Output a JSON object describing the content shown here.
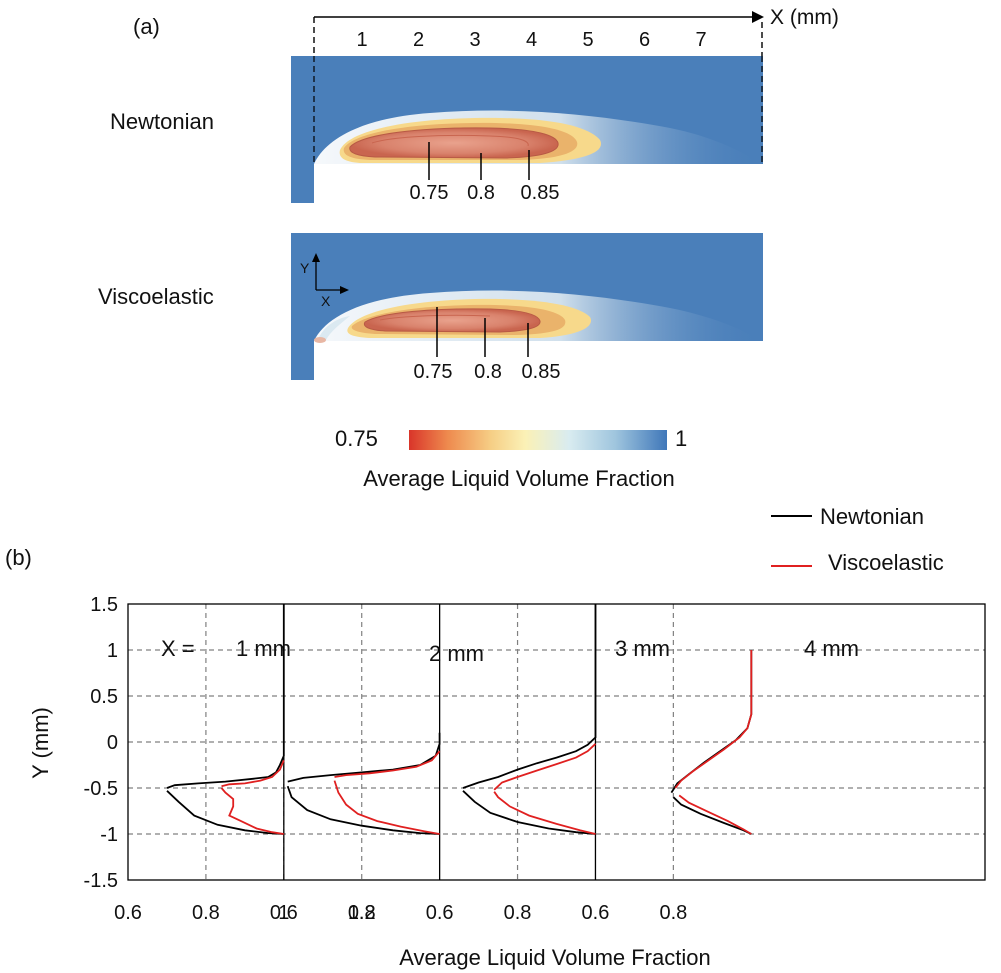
{
  "panel_a": {
    "label": "(a)",
    "x_axis_label": "X (mm)",
    "x_ticks": [
      "1",
      "2",
      "3",
      "4",
      "5",
      "6",
      "7"
    ],
    "rows": [
      {
        "name": "Newtonian",
        "contour_labels": [
          "0.75",
          "0.8",
          "0.85"
        ]
      },
      {
        "name": "Viscoelastic",
        "contour_labels": [
          "0.75",
          "0.8",
          "0.85"
        ]
      }
    ],
    "axes_indicator": {
      "y": "Y",
      "x": "X"
    },
    "colorbar": {
      "min_label": "0.75",
      "max_label": "1",
      "title": "Average Liquid Volume Fraction",
      "colors": [
        "#d9352a",
        "#ee8a4e",
        "#f6cf86",
        "#fbf1b6",
        "#d9ecf0",
        "#9fc5de",
        "#3f77b9"
      ]
    }
  },
  "chart_data": {
    "type": "line",
    "label": "(b)",
    "xlabel": "Average Liquid Volume Fraction",
    "ylabel": "Y (mm)",
    "x_tick_labels": [
      "0.6",
      "0.8",
      "0.6",
      "0.8",
      "0.6",
      "0.8",
      "0.6",
      "0.8",
      "1",
      "1.2"
    ],
    "y_tick_labels": [
      "1.5",
      "1",
      "0.5",
      "0",
      "-0.5",
      "-1",
      "-1.5"
    ],
    "y_ticks": [
      1.5,
      1,
      0.5,
      0,
      -0.5,
      -1,
      -1.5
    ],
    "ylim": [
      -1.5,
      1.5
    ],
    "grid": true,
    "legend": {
      "placement": "top-right",
      "entries": [
        {
          "name": "Newtonian",
          "color": "#000000"
        },
        {
          "name": "Viscoelastic",
          "color": "#e02020"
        }
      ]
    },
    "x_prefix": "X =",
    "subplots": [
      {
        "label": "1 mm",
        "x_range": [
          0.6,
          1.0
        ],
        "series": [
          {
            "name": "Newtonian",
            "color": "#000000",
            "points": [
              [
                0.7,
                -0.5
              ],
              [
                0.72,
                -0.47
              ],
              [
                0.78,
                -0.45
              ],
              [
                0.85,
                -0.43
              ],
              [
                0.92,
                -0.4
              ],
              [
                0.96,
                -0.38
              ],
              [
                0.98,
                -0.33
              ],
              [
                0.99,
                -0.25
              ],
              [
                1.0,
                -0.15
              ],
              [
                1.0,
                0.4
              ],
              [
                1.0,
                1.5
              ],
              [
                1.0,
                -1.0
              ],
              [
                0.96,
                -0.99
              ],
              [
                0.9,
                -0.96
              ],
              [
                0.83,
                -0.9
              ],
              [
                0.77,
                -0.8
              ],
              [
                0.73,
                -0.65
              ],
              [
                0.7,
                -0.53
              ]
            ]
          },
          {
            "name": "Viscoelastic",
            "color": "#e02020",
            "points": [
              [
                0.84,
                -0.48
              ],
              [
                0.86,
                -0.46
              ],
              [
                0.9,
                -0.45
              ],
              [
                0.94,
                -0.42
              ],
              [
                0.97,
                -0.38
              ],
              [
                0.99,
                -0.3
              ],
              [
                1.0,
                -0.2
              ],
              [
                1.0,
                -1.0
              ],
              [
                0.97,
                -0.98
              ],
              [
                0.93,
                -0.94
              ],
              [
                0.89,
                -0.86
              ],
              [
                0.86,
                -0.8
              ],
              [
                0.87,
                -0.7
              ],
              [
                0.87,
                -0.62
              ],
              [
                0.85,
                -0.55
              ],
              [
                0.84,
                -0.5
              ]
            ]
          }
        ]
      },
      {
        "label": "2 mm",
        "x_range": [
          0.6,
          1.0
        ],
        "series": [
          {
            "name": "Newtonian",
            "color": "#000000",
            "points": [
              [
                0.61,
                -0.43
              ],
              [
                0.65,
                -0.39
              ],
              [
                0.72,
                -0.36
              ],
              [
                0.8,
                -0.33
              ],
              [
                0.88,
                -0.3
              ],
              [
                0.95,
                -0.25
              ],
              [
                0.99,
                -0.15
              ],
              [
                1.0,
                -0.02
              ],
              [
                1.0,
                0.1
              ],
              [
                1.0,
                -1.0
              ],
              [
                0.95,
                -0.99
              ],
              [
                0.88,
                -0.96
              ],
              [
                0.8,
                -0.91
              ],
              [
                0.72,
                -0.84
              ],
              [
                0.66,
                -0.74
              ],
              [
                0.62,
                -0.6
              ],
              [
                0.61,
                -0.48
              ]
            ]
          },
          {
            "name": "Viscoelastic",
            "color": "#e02020",
            "points": [
              [
                0.73,
                -0.38
              ],
              [
                0.76,
                -0.36
              ],
              [
                0.82,
                -0.34
              ],
              [
                0.88,
                -0.31
              ],
              [
                0.94,
                -0.27
              ],
              [
                0.98,
                -0.2
              ],
              [
                1.0,
                -0.1
              ],
              [
                1.0,
                -1.0
              ],
              [
                0.96,
                -0.97
              ],
              [
                0.9,
                -0.92
              ],
              [
                0.84,
                -0.86
              ],
              [
                0.79,
                -0.78
              ],
              [
                0.76,
                -0.68
              ],
              [
                0.74,
                -0.55
              ],
              [
                0.73,
                -0.42
              ]
            ]
          }
        ]
      },
      {
        "label": "3 mm",
        "x_range": [
          0.6,
          1.0
        ],
        "series": [
          {
            "name": "Newtonian",
            "color": "#000000",
            "points": [
              [
                0.66,
                -0.5
              ],
              [
                0.7,
                -0.44
              ],
              [
                0.75,
                -0.38
              ],
              [
                0.8,
                -0.3
              ],
              [
                0.85,
                -0.23
              ],
              [
                0.9,
                -0.17
              ],
              [
                0.95,
                -0.1
              ],
              [
                0.98,
                -0.03
              ],
              [
                1.0,
                0.05
              ],
              [
                1.0,
                1.5
              ],
              [
                1.0,
                -1.0
              ],
              [
                0.95,
                -0.98
              ],
              [
                0.88,
                -0.94
              ],
              [
                0.8,
                -0.87
              ],
              [
                0.73,
                -0.77
              ],
              [
                0.69,
                -0.65
              ],
              [
                0.66,
                -0.53
              ]
            ]
          },
          {
            "name": "Viscoelastic",
            "color": "#e02020",
            "points": [
              [
                0.74,
                -0.52
              ],
              [
                0.76,
                -0.44
              ],
              [
                0.8,
                -0.38
              ],
              [
                0.85,
                -0.31
              ],
              [
                0.9,
                -0.24
              ],
              [
                0.95,
                -0.17
              ],
              [
                0.98,
                -0.1
              ],
              [
                1.0,
                -0.02
              ],
              [
                1.0,
                -1.0
              ],
              [
                0.96,
                -0.96
              ],
              [
                0.9,
                -0.89
              ],
              [
                0.83,
                -0.8
              ],
              [
                0.78,
                -0.7
              ],
              [
                0.75,
                -0.6
              ],
              [
                0.74,
                -0.54
              ]
            ]
          }
        ]
      },
      {
        "label": "4 mm",
        "x_range": [
          0.6,
          1.2
        ],
        "series": [
          {
            "name": "Newtonian",
            "color": "#000000",
            "points": [
              [
                0.795,
                -0.55
              ],
              [
                0.81,
                -0.45
              ],
              [
                0.84,
                -0.35
              ],
              [
                0.88,
                -0.22
              ],
              [
                0.92,
                -0.1
              ],
              [
                0.96,
                0.02
              ],
              [
                0.99,
                0.15
              ],
              [
                1.0,
                0.3
              ],
              [
                1.0,
                1.0
              ],
              [
                1.0,
                -1.0
              ],
              [
                0.98,
                -0.96
              ],
              [
                0.93,
                -0.88
              ],
              [
                0.87,
                -0.78
              ],
              [
                0.82,
                -0.68
              ],
              [
                0.8,
                -0.6
              ]
            ]
          },
          {
            "name": "Viscoelastic",
            "color": "#e02020",
            "points": [
              [
                0.805,
                -0.5
              ],
              [
                0.82,
                -0.42
              ],
              [
                0.85,
                -0.32
              ],
              [
                0.89,
                -0.2
              ],
              [
                0.93,
                -0.08
              ],
              [
                0.97,
                0.05
              ],
              [
                0.99,
                0.15
              ],
              [
                1.0,
                0.3
              ],
              [
                1.0,
                1.0
              ],
              [
                1.0,
                -1.0
              ],
              [
                0.98,
                -0.95
              ],
              [
                0.94,
                -0.86
              ],
              [
                0.89,
                -0.76
              ],
              [
                0.84,
                -0.66
              ],
              [
                0.815,
                -0.58
              ]
            ]
          }
        ]
      }
    ]
  }
}
